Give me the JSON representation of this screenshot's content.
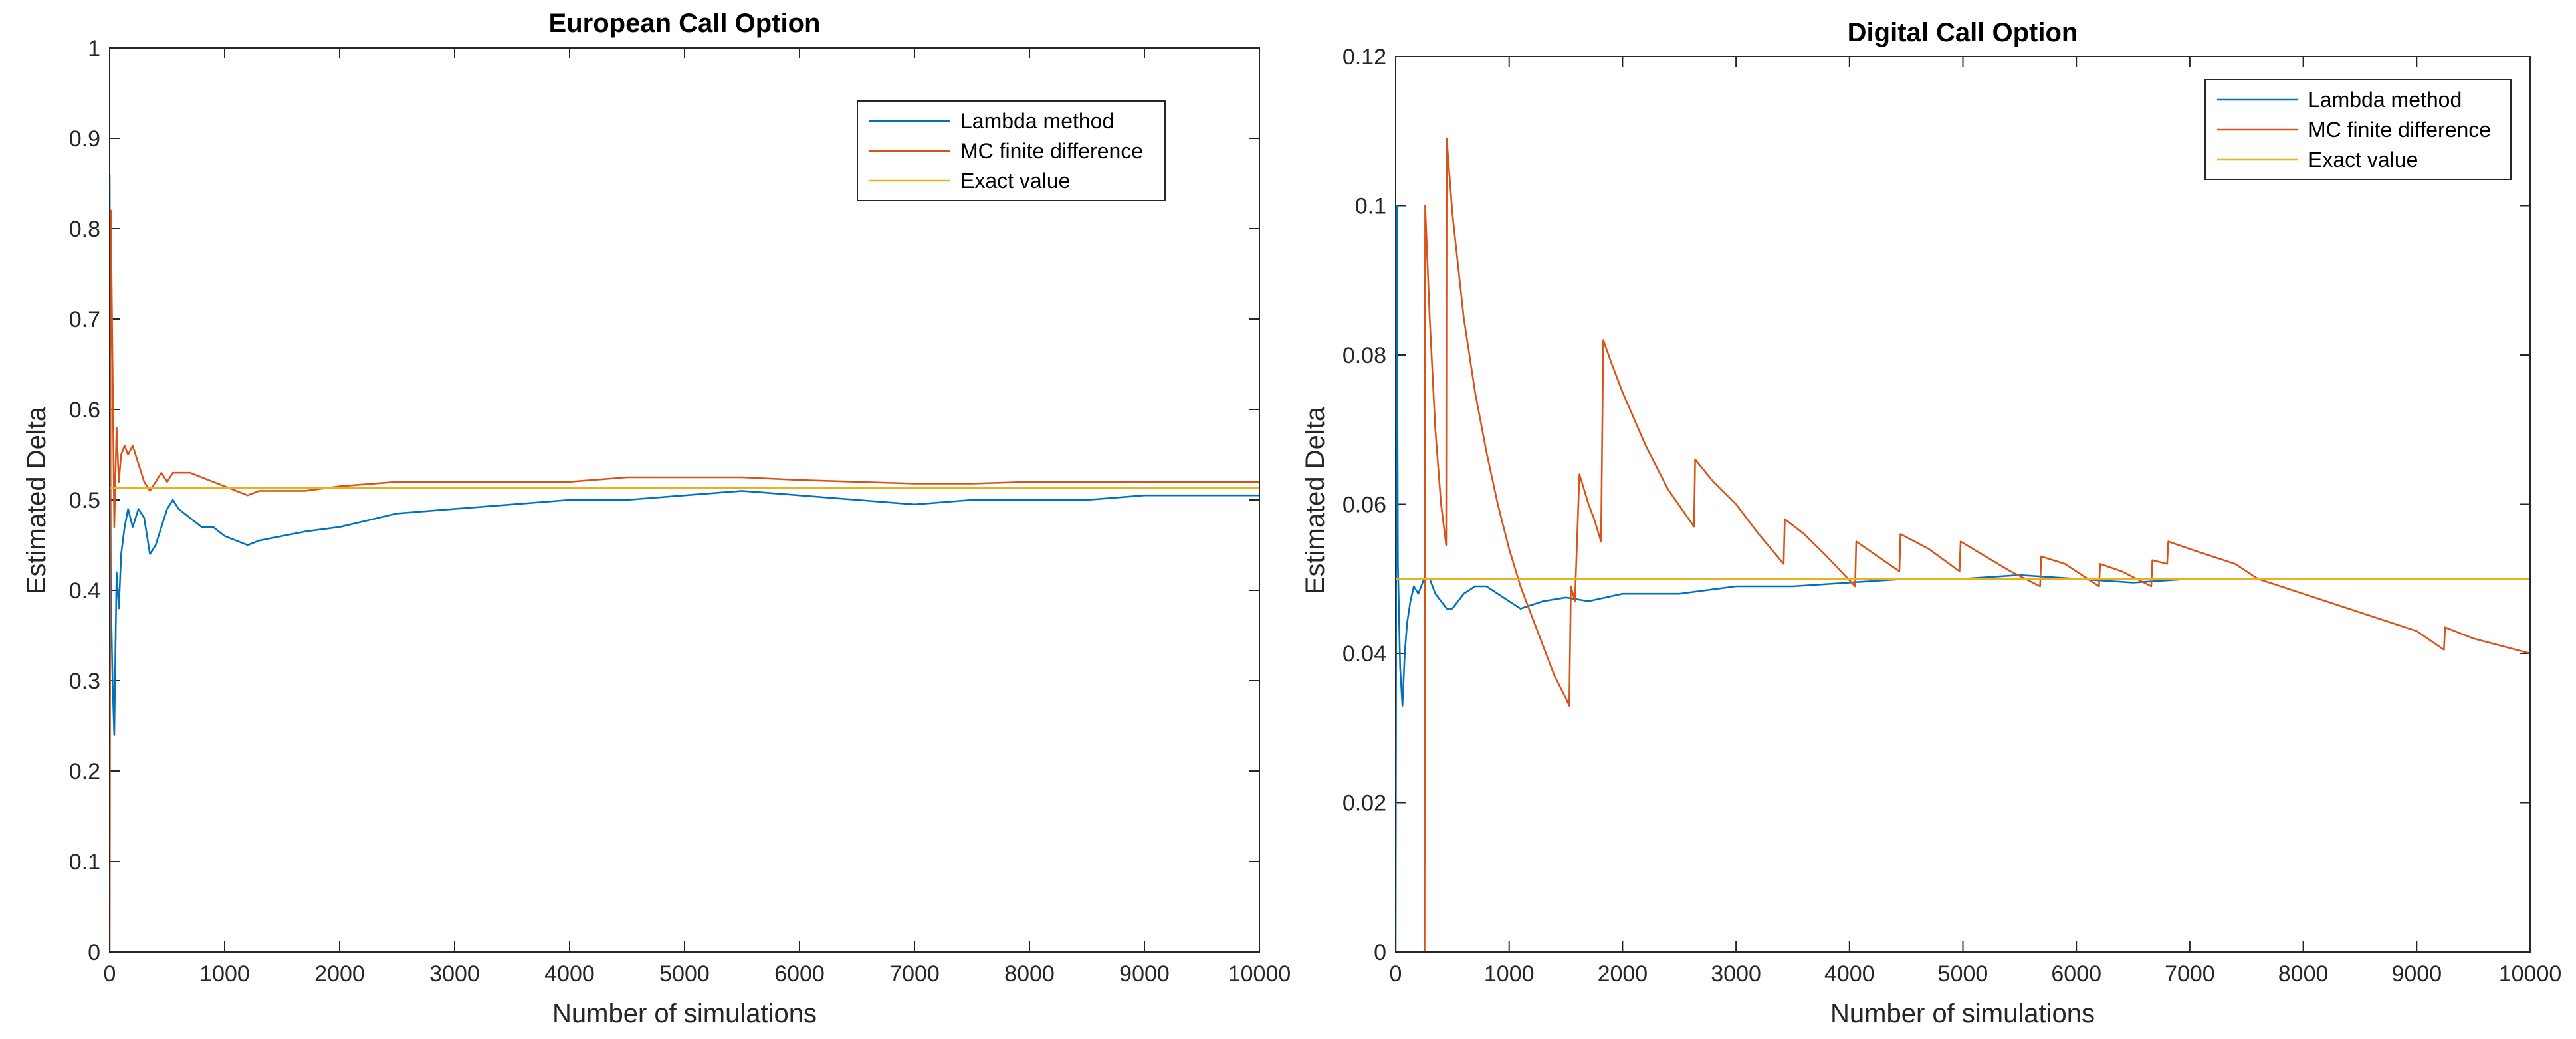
{
  "chart_data": [
    {
      "type": "line",
      "title": "European Call Option",
      "xlabel": "Number of simulations",
      "ylabel": "Estimated Delta",
      "xlim": [
        0,
        10000
      ],
      "ylim": [
        0,
        1
      ],
      "xticks": [
        "0",
        "1000",
        "2000",
        "3000",
        "4000",
        "5000",
        "6000",
        "7000",
        "8000",
        "9000",
        "10000"
      ],
      "yticks": [
        "0",
        "0.1",
        "0.2",
        "0.3",
        "0.4",
        "0.5",
        "0.6",
        "0.7",
        "0.8",
        "0.9",
        "1"
      ],
      "legend_position": "top-right",
      "series": [
        {
          "name": "Lambda method",
          "color": "#0072BD",
          "x": [
            0,
            10,
            25,
            40,
            60,
            80,
            100,
            130,
            160,
            200,
            250,
            300,
            350,
            400,
            450,
            500,
            550,
            600,
            700,
            800,
            900,
            1000,
            1100,
            1200,
            1300,
            1500,
            1700,
            2000,
            2500,
            3000,
            3500,
            4000,
            4500,
            5000,
            5500,
            6000,
            6500,
            7000,
            7500,
            8000,
            8500,
            9000,
            9500,
            10000
          ],
          "y": [
            0.86,
            0.4,
            0.3,
            0.24,
            0.42,
            0.38,
            0.44,
            0.47,
            0.49,
            0.47,
            0.49,
            0.48,
            0.44,
            0.45,
            0.47,
            0.49,
            0.5,
            0.49,
            0.48,
            0.47,
            0.47,
            0.46,
            0.455,
            0.45,
            0.455,
            0.46,
            0.465,
            0.47,
            0.485,
            0.49,
            0.495,
            0.5,
            0.5,
            0.505,
            0.51,
            0.505,
            0.5,
            0.495,
            0.5,
            0.5,
            0.5,
            0.505,
            0.505,
            0.505
          ]
        },
        {
          "name": "MC finite difference",
          "color": "#D95319",
          "x": [
            0,
            10,
            25,
            40,
            60,
            80,
            100,
            130,
            160,
            200,
            250,
            300,
            350,
            400,
            450,
            500,
            550,
            600,
            700,
            800,
            900,
            1000,
            1100,
            1200,
            1300,
            1500,
            1700,
            2000,
            2500,
            3000,
            3500,
            4000,
            4500,
            5000,
            5500,
            6000,
            6500,
            7000,
            7500,
            8000,
            8500,
            9000,
            9500,
            10000
          ],
          "y": [
            0.0,
            0.82,
            0.65,
            0.47,
            0.58,
            0.52,
            0.55,
            0.56,
            0.55,
            0.56,
            0.54,
            0.52,
            0.51,
            0.52,
            0.53,
            0.52,
            0.53,
            0.53,
            0.53,
            0.525,
            0.52,
            0.515,
            0.51,
            0.505,
            0.51,
            0.51,
            0.51,
            0.515,
            0.52,
            0.52,
            0.52,
            0.52,
            0.525,
            0.525,
            0.525,
            0.522,
            0.52,
            0.518,
            0.518,
            0.52,
            0.52,
            0.52,
            0.52,
            0.52
          ]
        },
        {
          "name": "Exact value",
          "color": "#EDB120",
          "x": [
            0,
            10000
          ],
          "y": [
            0.513,
            0.513
          ]
        }
      ]
    },
    {
      "type": "line",
      "title": "Digital Call Option",
      "xlabel": "Number of simulations",
      "ylabel": "Estimated Delta",
      "xlim": [
        0,
        10000
      ],
      "ylim": [
        0,
        0.12
      ],
      "xticks": [
        "0",
        "1000",
        "2000",
        "3000",
        "4000",
        "5000",
        "6000",
        "7000",
        "8000",
        "9000",
        "10000"
      ],
      "yticks": [
        "0",
        "0.02",
        "0.04",
        "0.06",
        "0.08",
        "0.1",
        "0.12"
      ],
      "legend_position": "top-right",
      "series": [
        {
          "name": "Lambda method",
          "color": "#0072BD",
          "x": [
            0,
            10,
            20,
            40,
            60,
            80,
            100,
            130,
            160,
            200,
            250,
            300,
            350,
            400,
            450,
            500,
            550,
            600,
            700,
            800,
            900,
            1000,
            1100,
            1200,
            1300,
            1500,
            1700,
            2000,
            2500,
            3000,
            3500,
            4000,
            4500,
            5000,
            5500,
            6000,
            6500,
            7000,
            7500,
            8000,
            8500,
            9000,
            9500,
            10000
          ],
          "y": [
            0.0,
            0.1,
            0.052,
            0.038,
            0.033,
            0.04,
            0.044,
            0.047,
            0.049,
            0.048,
            0.05,
            0.05,
            0.048,
            0.047,
            0.046,
            0.046,
            0.047,
            0.048,
            0.049,
            0.049,
            0.048,
            0.047,
            0.046,
            0.0465,
            0.047,
            0.0475,
            0.047,
            0.048,
            0.048,
            0.049,
            0.049,
            0.0495,
            0.05,
            0.05,
            0.0505,
            0.05,
            0.0495,
            0.05,
            0.05,
            0.05,
            0.05,
            0.05,
            0.05,
            0.05
          ]
        },
        {
          "name": "MC finite difference",
          "color": "#D95319",
          "x": [
            0,
            255,
            260,
            300,
            350,
            400,
            445,
            450,
            500,
            600,
            700,
            800,
            900,
            1000,
            1100,
            1200,
            1300,
            1400,
            1500,
            1530,
            1545,
            1580,
            1620,
            1660,
            1700,
            1750,
            1810,
            1830,
            1900,
            2000,
            2200,
            2400,
            2630,
            2640,
            2800,
            3000,
            3200,
            3420,
            3430,
            3600,
            3800,
            4050,
            4060,
            4250,
            4440,
            4450,
            4700,
            4970,
            4980,
            5200,
            5420,
            5680,
            5690,
            5900,
            6200,
            6210,
            6400,
            6660,
            6670,
            6800,
            6810,
            7000,
            7200,
            7400,
            7600,
            7800,
            8000,
            8200,
            8400,
            8600,
            8800,
            9000,
            9240,
            9250,
            9500,
            10000
          ],
          "y": [
            0.0,
            0.0,
            0.1,
            0.085,
            0.07,
            0.06,
            0.0545,
            0.109,
            0.099,
            0.085,
            0.075,
            0.067,
            0.06,
            0.054,
            0.049,
            0.045,
            0.041,
            0.037,
            0.034,
            0.033,
            0.049,
            0.047,
            0.064,
            0.062,
            0.06,
            0.058,
            0.055,
            0.082,
            0.079,
            0.075,
            0.068,
            0.062,
            0.057,
            0.066,
            0.063,
            0.06,
            0.056,
            0.052,
            0.058,
            0.056,
            0.053,
            0.049,
            0.055,
            0.053,
            0.051,
            0.056,
            0.054,
            0.051,
            0.055,
            0.053,
            0.051,
            0.049,
            0.053,
            0.052,
            0.049,
            0.052,
            0.051,
            0.049,
            0.0525,
            0.052,
            0.055,
            0.054,
            0.053,
            0.052,
            0.05,
            0.049,
            0.048,
            0.047,
            0.046,
            0.045,
            0.044,
            0.043,
            0.0405,
            0.0435,
            0.042,
            0.04
          ]
        },
        {
          "name": "Exact value",
          "color": "#EDB120",
          "x": [
            0,
            10000
          ],
          "y": [
            0.05,
            0.05
          ]
        }
      ]
    }
  ]
}
